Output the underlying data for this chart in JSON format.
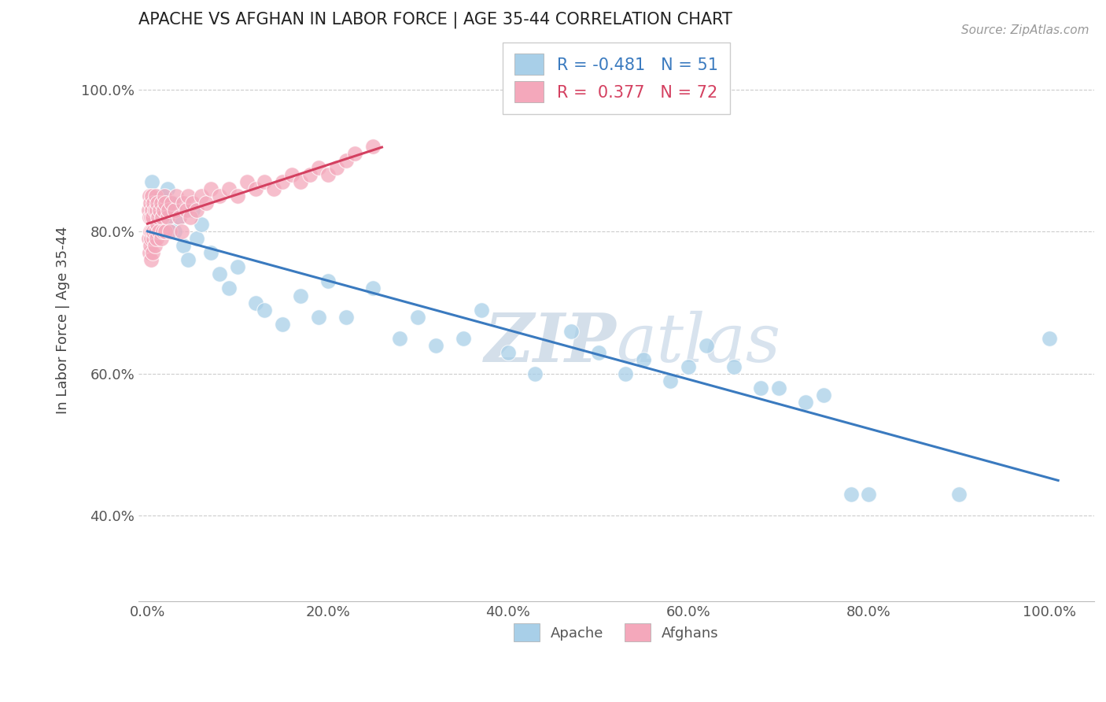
{
  "title": "APACHE VS AFGHAN IN LABOR FORCE | AGE 35-44 CORRELATION CHART",
  "source": "Source: ZipAtlas.com",
  "ylabel": "In Labor Force | Age 35-44",
  "x_tick_labels": [
    "0.0%",
    "20.0%",
    "40.0%",
    "60.0%",
    "80.0%",
    "100.0%"
  ],
  "x_tick_values": [
    0.0,
    0.2,
    0.4,
    0.6,
    0.8,
    1.0
  ],
  "y_tick_labels": [
    "40.0%",
    "60.0%",
    "80.0%",
    "100.0%"
  ],
  "y_tick_values": [
    0.4,
    0.6,
    0.8,
    1.0
  ],
  "xlim": [
    -0.01,
    1.05
  ],
  "ylim": [
    0.28,
    1.07
  ],
  "apache_color": "#a8cfe8",
  "afghan_color": "#f4a8bb",
  "apache_line_color": "#3a7abf",
  "afghan_line_color": "#d44060",
  "legend_apache_R": "-0.481",
  "legend_apache_N": "51",
  "legend_afghan_R": "0.377",
  "legend_afghan_N": "72",
  "watermark_zip": "ZIP",
  "watermark_atlas": "atlas",
  "apache_x": [
    0.005,
    0.01,
    0.012,
    0.015,
    0.018,
    0.02,
    0.022,
    0.025,
    0.028,
    0.03,
    0.035,
    0.04,
    0.045,
    0.05,
    0.055,
    0.06,
    0.07,
    0.08,
    0.09,
    0.1,
    0.12,
    0.13,
    0.15,
    0.17,
    0.19,
    0.2,
    0.22,
    0.25,
    0.28,
    0.3,
    0.32,
    0.35,
    0.37,
    0.4,
    0.43,
    0.47,
    0.5,
    0.53,
    0.55,
    0.58,
    0.6,
    0.62,
    0.65,
    0.68,
    0.7,
    0.73,
    0.75,
    0.78,
    0.8,
    0.9,
    1.0
  ],
  "apache_y": [
    0.87,
    0.83,
    0.82,
    0.85,
    0.84,
    0.83,
    0.86,
    0.81,
    0.84,
    0.8,
    0.82,
    0.78,
    0.76,
    0.83,
    0.79,
    0.81,
    0.77,
    0.74,
    0.72,
    0.75,
    0.7,
    0.69,
    0.67,
    0.71,
    0.68,
    0.73,
    0.68,
    0.72,
    0.65,
    0.68,
    0.64,
    0.65,
    0.69,
    0.63,
    0.6,
    0.66,
    0.63,
    0.6,
    0.62,
    0.59,
    0.61,
    0.64,
    0.61,
    0.58,
    0.58,
    0.56,
    0.57,
    0.43,
    0.43,
    0.43,
    0.65
  ],
  "afghan_x": [
    0.001,
    0.001,
    0.002,
    0.002,
    0.002,
    0.003,
    0.003,
    0.003,
    0.004,
    0.004,
    0.004,
    0.005,
    0.005,
    0.005,
    0.006,
    0.006,
    0.007,
    0.007,
    0.007,
    0.008,
    0.008,
    0.009,
    0.009,
    0.01,
    0.01,
    0.011,
    0.011,
    0.012,
    0.013,
    0.014,
    0.015,
    0.015,
    0.016,
    0.017,
    0.018,
    0.019,
    0.02,
    0.02,
    0.022,
    0.023,
    0.025,
    0.027,
    0.03,
    0.032,
    0.035,
    0.038,
    0.04,
    0.043,
    0.045,
    0.048,
    0.05,
    0.055,
    0.06,
    0.065,
    0.07,
    0.08,
    0.09,
    0.1,
    0.11,
    0.12,
    0.13,
    0.14,
    0.15,
    0.16,
    0.17,
    0.18,
    0.19,
    0.2,
    0.21,
    0.22,
    0.23,
    0.25
  ],
  "afghan_y": [
    0.83,
    0.79,
    0.82,
    0.77,
    0.85,
    0.78,
    0.84,
    0.8,
    0.79,
    0.82,
    0.76,
    0.85,
    0.8,
    0.83,
    0.77,
    0.82,
    0.79,
    0.84,
    0.8,
    0.78,
    0.83,
    0.8,
    0.85,
    0.79,
    0.83,
    0.81,
    0.84,
    0.82,
    0.8,
    0.83,
    0.79,
    0.84,
    0.82,
    0.8,
    0.83,
    0.85,
    0.8,
    0.84,
    0.82,
    0.83,
    0.8,
    0.84,
    0.83,
    0.85,
    0.82,
    0.8,
    0.84,
    0.83,
    0.85,
    0.82,
    0.84,
    0.83,
    0.85,
    0.84,
    0.86,
    0.85,
    0.86,
    0.85,
    0.87,
    0.86,
    0.87,
    0.86,
    0.87,
    0.88,
    0.87,
    0.88,
    0.89,
    0.88,
    0.89,
    0.9,
    0.91,
    0.92
  ]
}
